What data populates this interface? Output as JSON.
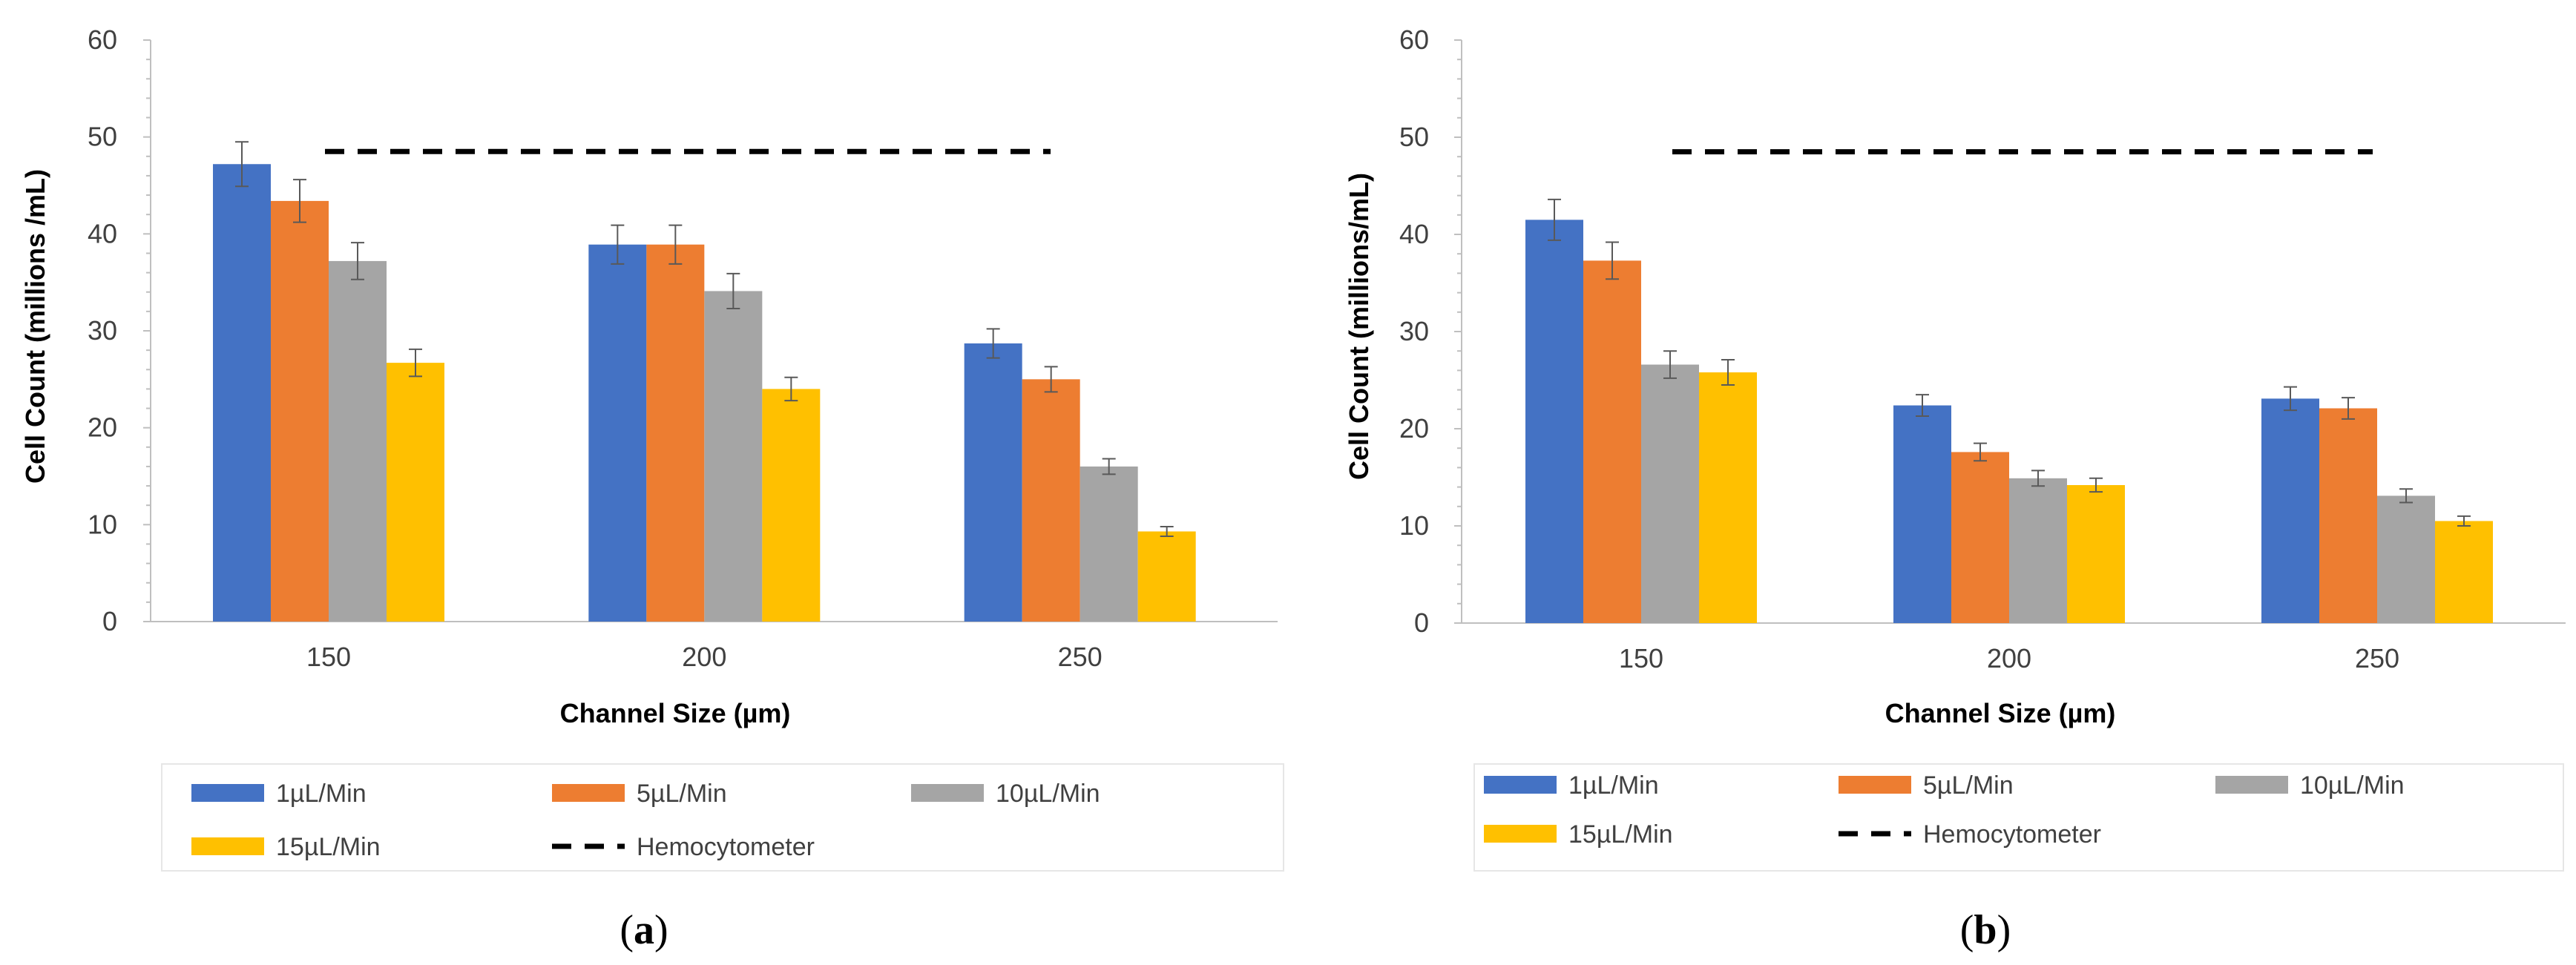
{
  "chart_data": [
    {
      "id": "a",
      "type": "bar",
      "caption_open": "(",
      "caption_letter": "a",
      "caption_close": ")",
      "categories": [
        "150",
        "200",
        "250"
      ],
      "xlabel": "Channel Size (µm)",
      "ylabel": "Cell Count (millions /mL)",
      "ylim": [
        0,
        60
      ],
      "yticks": [
        0,
        10,
        20,
        30,
        40,
        50,
        60
      ],
      "series": [
        {
          "name": "1µL/Min",
          "color": "#4472C4",
          "values": [
            47.2,
            38.9,
            28.7
          ],
          "errors": [
            2.3,
            2.0,
            1.5
          ]
        },
        {
          "name": "5µL/Min",
          "color": "#ED7D31",
          "values": [
            43.4,
            38.9,
            25.0
          ],
          "errors": [
            2.2,
            2.0,
            1.3
          ]
        },
        {
          "name": "10µL/Min",
          "color": "#A5A5A5",
          "values": [
            37.2,
            34.1,
            16.0
          ],
          "errors": [
            1.9,
            1.8,
            0.8
          ]
        },
        {
          "name": "15µL/Min",
          "color": "#FFC000",
          "values": [
            26.7,
            24.0,
            9.3
          ],
          "errors": [
            1.4,
            1.2,
            0.5
          ]
        }
      ],
      "reference_line": {
        "name": "Hemocytometer",
        "value": 48.5,
        "color": "#000000"
      },
      "legend_position": "bottom"
    },
    {
      "id": "b",
      "type": "bar",
      "caption_open": "(",
      "caption_letter": "b",
      "caption_close": ")",
      "categories": [
        "150",
        "200",
        "250"
      ],
      "xlabel": "Channel Size (µm)",
      "ylabel": "Cell Count (millions/mL)",
      "ylim": [
        0,
        60
      ],
      "yticks": [
        0,
        10,
        20,
        30,
        40,
        50,
        60
      ],
      "series": [
        {
          "name": "1µL/Min",
          "color": "#4472C4",
          "values": [
            41.5,
            22.4,
            23.1
          ],
          "errors": [
            2.1,
            1.1,
            1.2
          ]
        },
        {
          "name": "5µL/Min",
          "color": "#ED7D31",
          "values": [
            37.3,
            17.6,
            22.1
          ],
          "errors": [
            1.9,
            0.9,
            1.1
          ]
        },
        {
          "name": "10µL/Min",
          "color": "#A5A5A5",
          "values": [
            26.6,
            14.9,
            13.1
          ],
          "errors": [
            1.4,
            0.8,
            0.7
          ]
        },
        {
          "name": "15µL/Min",
          "color": "#FFC000",
          "values": [
            25.8,
            14.2,
            10.5
          ],
          "errors": [
            1.3,
            0.7,
            0.5
          ]
        }
      ],
      "reference_line": {
        "name": "Hemocytometer",
        "value": 48.5,
        "color": "#000000"
      },
      "legend_position": "bottom"
    }
  ]
}
